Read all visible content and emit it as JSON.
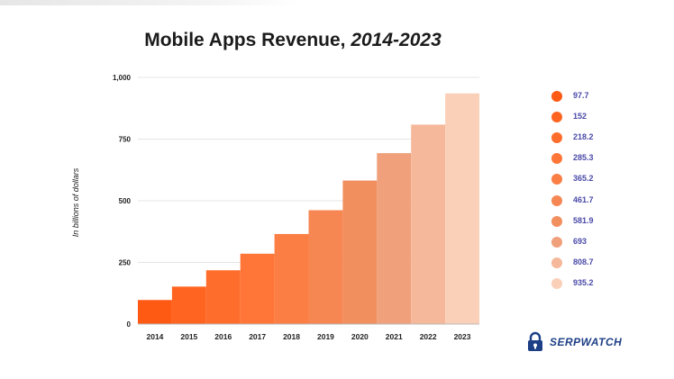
{
  "title": {
    "main": "Mobile Apps Revenue, ",
    "years": "2014-2023"
  },
  "logo": {
    "text": "SERPWATCH",
    "icon": "padlock-icon"
  },
  "chart_data": {
    "type": "bar",
    "title": "Mobile Apps Revenue, 2014-2023",
    "ylabel": "In billions of dollars",
    "xlabel": "",
    "categories": [
      "2014",
      "2015",
      "2016",
      "2017",
      "2018",
      "2019",
      "2020",
      "2021",
      "2022",
      "2023"
    ],
    "values": [
      97.7,
      152,
      218.2,
      285.3,
      365.2,
      461.7,
      581.9,
      693,
      808.7,
      935.2
    ],
    "value_labels": [
      "97.7",
      "152",
      "218.2",
      "285.3",
      "365.2",
      "461.7",
      "581.9",
      "693",
      "808.7",
      "935.2"
    ],
    "ylim": [
      0,
      1000
    ],
    "yticks": [
      0,
      250,
      500,
      750,
      1000
    ],
    "ytick_labels": [
      "0",
      "250",
      "500",
      "750",
      "1,000"
    ],
    "grid": true,
    "legend": "right",
    "colors": [
      "#ff5a14",
      "#ff6420",
      "#ff6d2c",
      "#ff7638",
      "#fb7e45",
      "#f68752",
      "#f28f5f",
      "#f0a07a",
      "#f5b89a",
      "#fbd0b8"
    ]
  }
}
